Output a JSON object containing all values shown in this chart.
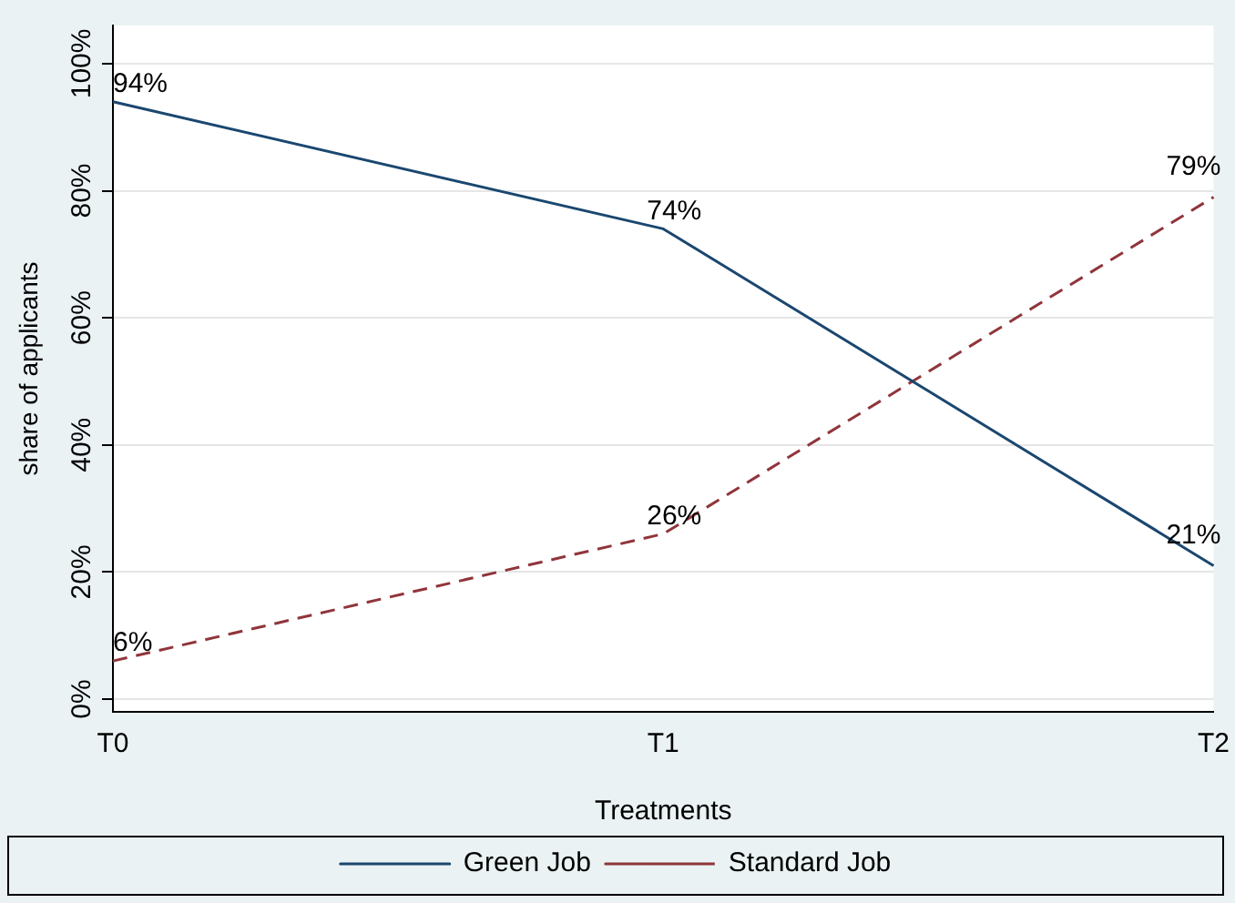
{
  "chart_data": {
    "type": "line",
    "xlabel": "Treatments",
    "ylabel": "share of applicants",
    "categories": [
      "T0",
      "T1",
      "T2"
    ],
    "ylim": [
      -2,
      106
    ],
    "yticks": [
      {
        "value": 0,
        "label": "0%"
      },
      {
        "value": 20,
        "label": "20%"
      },
      {
        "value": 40,
        "label": "40%"
      },
      {
        "value": 60,
        "label": "60%"
      },
      {
        "value": 80,
        "label": "80%"
      },
      {
        "value": 100,
        "label": "100%"
      }
    ],
    "series": [
      {
        "name": "Green Job",
        "color": "#1a476f",
        "line_style": "solid",
        "values": [
          94,
          74,
          21
        ],
        "value_labels": [
          "94%",
          "74%",
          "21%"
        ]
      },
      {
        "name": "Standard Job",
        "color": "#90353b",
        "line_style": "dashed",
        "values": [
          6,
          26,
          79
        ],
        "value_labels": [
          "6%",
          "26%",
          "79%"
        ]
      }
    ],
    "grid": "y",
    "legend": "bottom",
    "marker": "none"
  }
}
